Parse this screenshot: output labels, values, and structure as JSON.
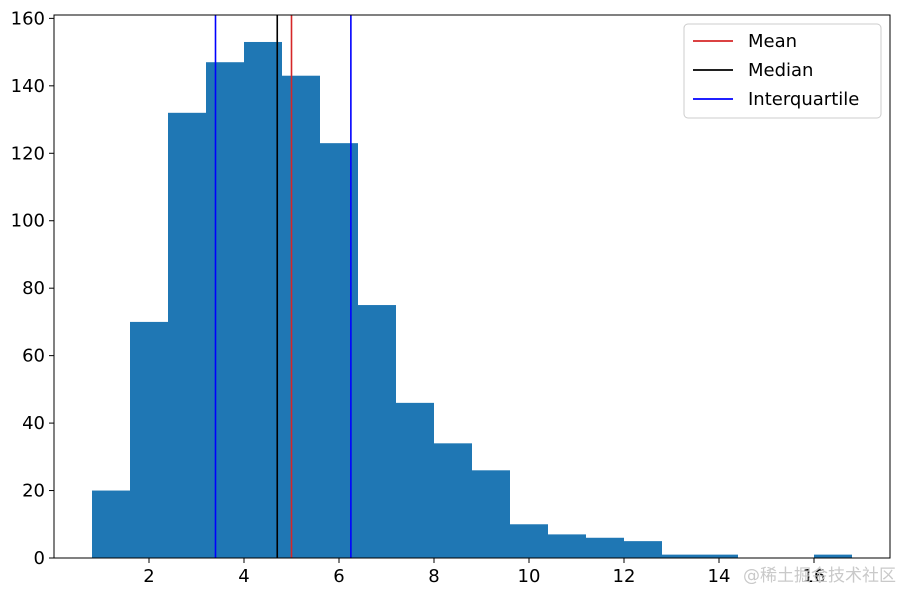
{
  "chart_data": {
    "type": "bar",
    "title": "",
    "xlabel": "",
    "ylabel": "",
    "bins": [
      {
        "x0": 0.8,
        "x1": 1.6,
        "count": 20
      },
      {
        "x0": 1.6,
        "x1": 2.4,
        "count": 70
      },
      {
        "x0": 2.4,
        "x1": 3.2,
        "count": 132
      },
      {
        "x0": 3.2,
        "x1": 4.0,
        "count": 147
      },
      {
        "x0": 4.0,
        "x1": 4.8,
        "count": 153
      },
      {
        "x0": 4.8,
        "x1": 5.6,
        "count": 143
      },
      {
        "x0": 5.6,
        "x1": 6.4,
        "count": 123
      },
      {
        "x0": 6.4,
        "x1": 7.2,
        "count": 75
      },
      {
        "x0": 7.2,
        "x1": 8.0,
        "count": 46
      },
      {
        "x0": 8.0,
        "x1": 8.8,
        "count": 34
      },
      {
        "x0": 8.8,
        "x1": 9.6,
        "count": 26
      },
      {
        "x0": 9.6,
        "x1": 10.4,
        "count": 10
      },
      {
        "x0": 10.4,
        "x1": 11.2,
        "count": 7
      },
      {
        "x0": 11.2,
        "x1": 12.0,
        "count": 6
      },
      {
        "x0": 12.0,
        "x1": 12.8,
        "count": 5
      },
      {
        "x0": 12.8,
        "x1": 13.6,
        "count": 1
      },
      {
        "x0": 13.6,
        "x1": 14.4,
        "count": 1
      },
      {
        "x0": 14.4,
        "x1": 15.2,
        "count": 0
      },
      {
        "x0": 15.2,
        "x1": 16.0,
        "count": 0
      },
      {
        "x0": 16.0,
        "x1": 16.8,
        "count": 1
      }
    ],
    "bar_color": "#1f77b4",
    "xlim": [
      -0.0,
      17.6
    ],
    "ylim": [
      0,
      161
    ],
    "xticks": [
      2,
      4,
      6,
      8,
      10,
      12,
      14,
      16
    ],
    "yticks": [
      0,
      20,
      40,
      60,
      80,
      100,
      120,
      140,
      160
    ],
    "vlines": [
      {
        "name": "Mean",
        "x": 5.0,
        "color": "#d62728"
      },
      {
        "name": "Median",
        "x": 4.7,
        "color": "#000000"
      },
      {
        "name": "Interquartile",
        "x": 3.4,
        "color": "#0000ff"
      },
      {
        "name": "Interquartile",
        "x": 6.25,
        "color": "#0000ff"
      }
    ],
    "legend": {
      "placement": "top-right",
      "entries": [
        {
          "label": "Mean",
          "color": "#d62728"
        },
        {
          "label": "Median",
          "color": "#000000"
        },
        {
          "label": "Interquartile",
          "color": "#0000ff"
        }
      ]
    },
    "grid": false
  },
  "watermark": "@稀土掘金技术社区"
}
